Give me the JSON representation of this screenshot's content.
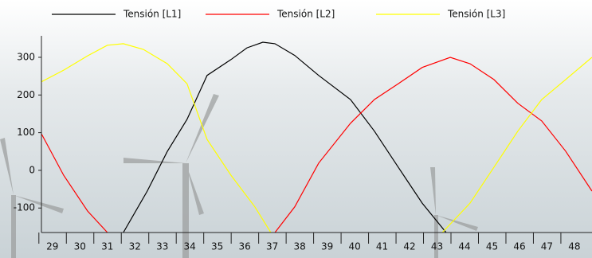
{
  "chart_data": {
    "type": "line",
    "xlim": [
      28.6,
      48.64
    ],
    "ylim": [
      -165,
      357
    ],
    "xticks": [
      29,
      30,
      31,
      32,
      33,
      34,
      35,
      36,
      37,
      38,
      39,
      40,
      41,
      42,
      43,
      44,
      45,
      46,
      47,
      48
    ],
    "yticks": [
      -100,
      0,
      100,
      200,
      300
    ],
    "series": [
      {
        "name": "Tensión [L1]",
        "color": "#000000",
        "x": [
          31.58,
          32.45,
          33.18,
          33.9,
          34.63,
          35.5,
          36.08,
          36.66,
          37.1,
          37.82,
          38.69,
          39.85,
          40.72,
          41.59,
          42.46,
          43.33
        ],
        "values": [
          -165,
          -55,
          50,
          135,
          252,
          294,
          325,
          340,
          336,
          305,
          252,
          188,
          104,
          8,
          -87,
          -165
        ]
      },
      {
        "name": "Tensión [L2]",
        "color": "#ff0000",
        "x": [
          28.6,
          29.41,
          30.28,
          31,
          34,
          37.1,
          37.82,
          38.69,
          39.85,
          40.72,
          41.59,
          42.46,
          43.48,
          44.2,
          45.07,
          45.94,
          46.81,
          47.68,
          48.64
        ],
        "values": [
          97,
          -13,
          -108,
          -165,
          null,
          -165,
          -97,
          19,
          125,
          188,
          230,
          273,
          300,
          283,
          241,
          178,
          131,
          51,
          -55
        ]
      },
      {
        "name": "Tensión [L3]",
        "color": "#ffff00",
        "x": [
          28.6,
          29.41,
          30.28,
          31,
          31.58,
          32.31,
          33.18,
          33.9,
          34.63,
          35.5,
          36.37,
          36.95,
          40,
          43.19,
          44.2,
          45.07,
          45.94,
          46.81,
          47.68,
          48.64
        ],
        "values": [
          235,
          266,
          304,
          332,
          336,
          321,
          283,
          230,
          82,
          -13,
          -97,
          -165,
          null,
          -165,
          -87,
          8,
          104,
          188,
          241,
          300
        ]
      }
    ]
  }
}
